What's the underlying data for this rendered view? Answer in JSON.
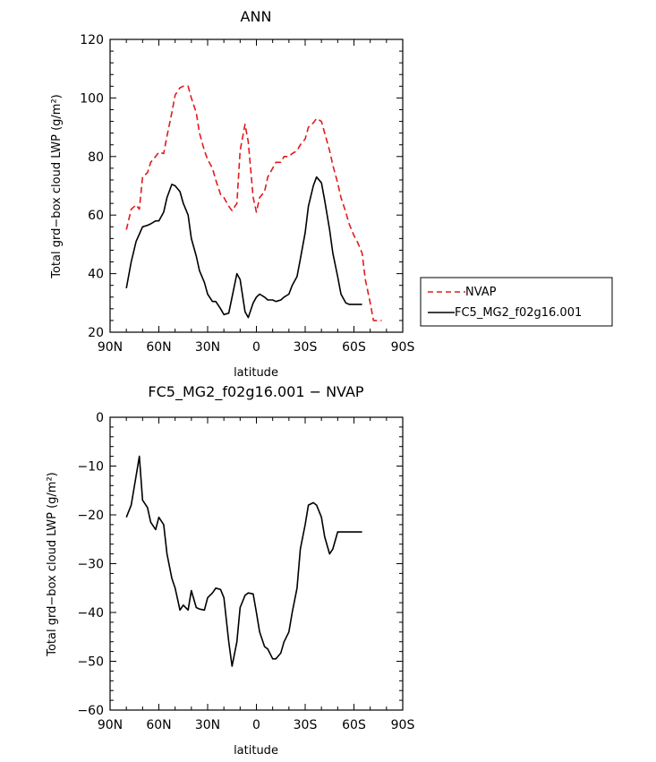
{
  "chart_data": [
    {
      "type": "line",
      "title": "ANN",
      "xlabel": "latitude",
      "ylabel": "Total grd−box cloud LWP (g/m²)",
      "xlim": [
        90,
        -90
      ],
      "ylim": [
        20,
        120
      ],
      "xticks": [
        90,
        60,
        30,
        0,
        -30,
        -60,
        -90
      ],
      "xticklabels": [
        "90N",
        "60N",
        "30N",
        "0",
        "30S",
        "60S",
        "90S"
      ],
      "yticks": [
        20,
        40,
        60,
        80,
        100,
        120
      ],
      "yticklabels": [
        "20",
        "40",
        "60",
        "80",
        "100",
        "120"
      ],
      "grid": false,
      "legend": "outside-right",
      "series": [
        {
          "name": "NVAP",
          "color": "#e31a1c",
          "dash": "dashed",
          "x": [
            80,
            77,
            74,
            72,
            70,
            67,
            65,
            62,
            60,
            57,
            55,
            52,
            50,
            47,
            45,
            42,
            40,
            37,
            35,
            32,
            30,
            27,
            25,
            22,
            20,
            17,
            15,
            12,
            10,
            7,
            5,
            2,
            0,
            -2,
            -5,
            -7,
            -10,
            -12,
            -15,
            -17,
            -20,
            -22,
            -25,
            -27,
            -30,
            -32,
            -35,
            -37,
            -40,
            -42,
            -45,
            -47,
            -50,
            -52,
            -55,
            -57,
            -60,
            -62,
            -65,
            -67,
            -70,
            -72,
            -75,
            -77
          ],
          "y": [
            55,
            62,
            63.5,
            62,
            73,
            74.5,
            78,
            80,
            81.5,
            81,
            87,
            95,
            101,
            103.5,
            104,
            104,
            100,
            95,
            88,
            82,
            79,
            76,
            72,
            67,
            66,
            63,
            61.5,
            64,
            82,
            91,
            85,
            66,
            61,
            66,
            68,
            73,
            76,
            78,
            78,
            80,
            80,
            81,
            82,
            84,
            86,
            90,
            91.5,
            93,
            92,
            88,
            82,
            77,
            71,
            66,
            61,
            57,
            53,
            51,
            47,
            38,
            30,
            24,
            24,
            24
          ],
          "y_clipped_note": ""
        },
        {
          "name": "FC5_MG2_f02g16.001",
          "color": "#000000",
          "dash": "solid",
          "x": [
            80,
            77,
            74,
            72,
            70,
            67,
            65,
            62,
            60,
            57,
            55,
            52,
            50,
            47,
            45,
            42,
            40,
            37,
            35,
            32,
            30,
            27,
            25,
            22,
            20,
            17,
            15,
            12,
            10,
            7,
            5,
            2,
            0,
            -2,
            -5,
            -7,
            -10,
            -12,
            -15,
            -17,
            -20,
            -22,
            -25,
            -27,
            -30,
            -32,
            -35,
            -37,
            -40,
            -42,
            -45,
            -47,
            -50,
            -52,
            -55,
            -57,
            -60,
            -62,
            -65
          ],
          "y": [
            35,
            44,
            51,
            53.5,
            56,
            56.5,
            57,
            58,
            58,
            61,
            66,
            70.5,
            70,
            68,
            64,
            60,
            52,
            46,
            41,
            37,
            33,
            30.5,
            30.5,
            28,
            26,
            26.5,
            32,
            40,
            38,
            27,
            25,
            30,
            32,
            33,
            32,
            31,
            31,
            30.5,
            31,
            32,
            33,
            36,
            39,
            45,
            54,
            63,
            70,
            73,
            71,
            65,
            55,
            47,
            39,
            33,
            30,
            29.5,
            29.5,
            29.5,
            29.5
          ]
        }
      ]
    },
    {
      "type": "line",
      "title": "FC5_MG2_f02g16.001  −  NVAP",
      "xlabel": "latitude",
      "ylabel": "Total grd−box cloud LWP (g/m²)",
      "xlim": [
        90,
        -90
      ],
      "ylim": [
        -60,
        0
      ],
      "xticks": [
        90,
        60,
        30,
        0,
        -30,
        -60,
        -90
      ],
      "xticklabels": [
        "90N",
        "60N",
        "30N",
        "0",
        "30S",
        "60S",
        "90S"
      ],
      "yticks": [
        -60,
        -50,
        -40,
        -30,
        -20,
        -10,
        0
      ],
      "yticklabels": [
        "−60",
        "−50",
        "−40",
        "−30",
        "−20",
        "−10",
        "0"
      ],
      "grid": false,
      "series": [
        {
          "color": "#000000",
          "dash": "solid",
          "x": [
            80,
            77,
            74,
            72,
            70,
            67,
            65,
            62,
            60,
            57,
            55,
            52,
            50,
            47,
            45,
            42,
            40,
            37,
            35,
            32,
            30,
            27,
            25,
            22,
            20,
            17,
            15,
            12,
            10,
            7,
            5,
            2,
            0,
            -2,
            -5,
            -7,
            -10,
            -12,
            -15,
            -17,
            -20,
            -22,
            -25,
            -27,
            -30,
            -32,
            -35,
            -37,
            -40,
            -42,
            -45,
            -47,
            -50,
            -52,
            -55,
            -57,
            -60,
            -62,
            -65
          ],
          "y": [
            -20.5,
            -18,
            -12,
            -8,
            -17,
            -18.5,
            -21.5,
            -23,
            -20.5,
            -22,
            -28,
            -33,
            -35,
            -39.5,
            -38.5,
            -39.5,
            -35.5,
            -39,
            -39.3,
            -39.5,
            -37,
            -36,
            -35,
            -35.3,
            -37,
            -46,
            -51,
            -46,
            -39,
            -36.5,
            -36,
            -36.2,
            -40,
            -44,
            -47,
            -47.5,
            -49.5,
            -49.5,
            -48.3,
            -46,
            -44,
            -40,
            -35,
            -27,
            -22,
            -18,
            -17.5,
            -18,
            -20.5,
            -24.5,
            -28,
            -27,
            -23.5,
            -23.5,
            -23.5,
            -23.5,
            -23.5,
            -23.5,
            -23.5
          ]
        }
      ]
    }
  ]
}
